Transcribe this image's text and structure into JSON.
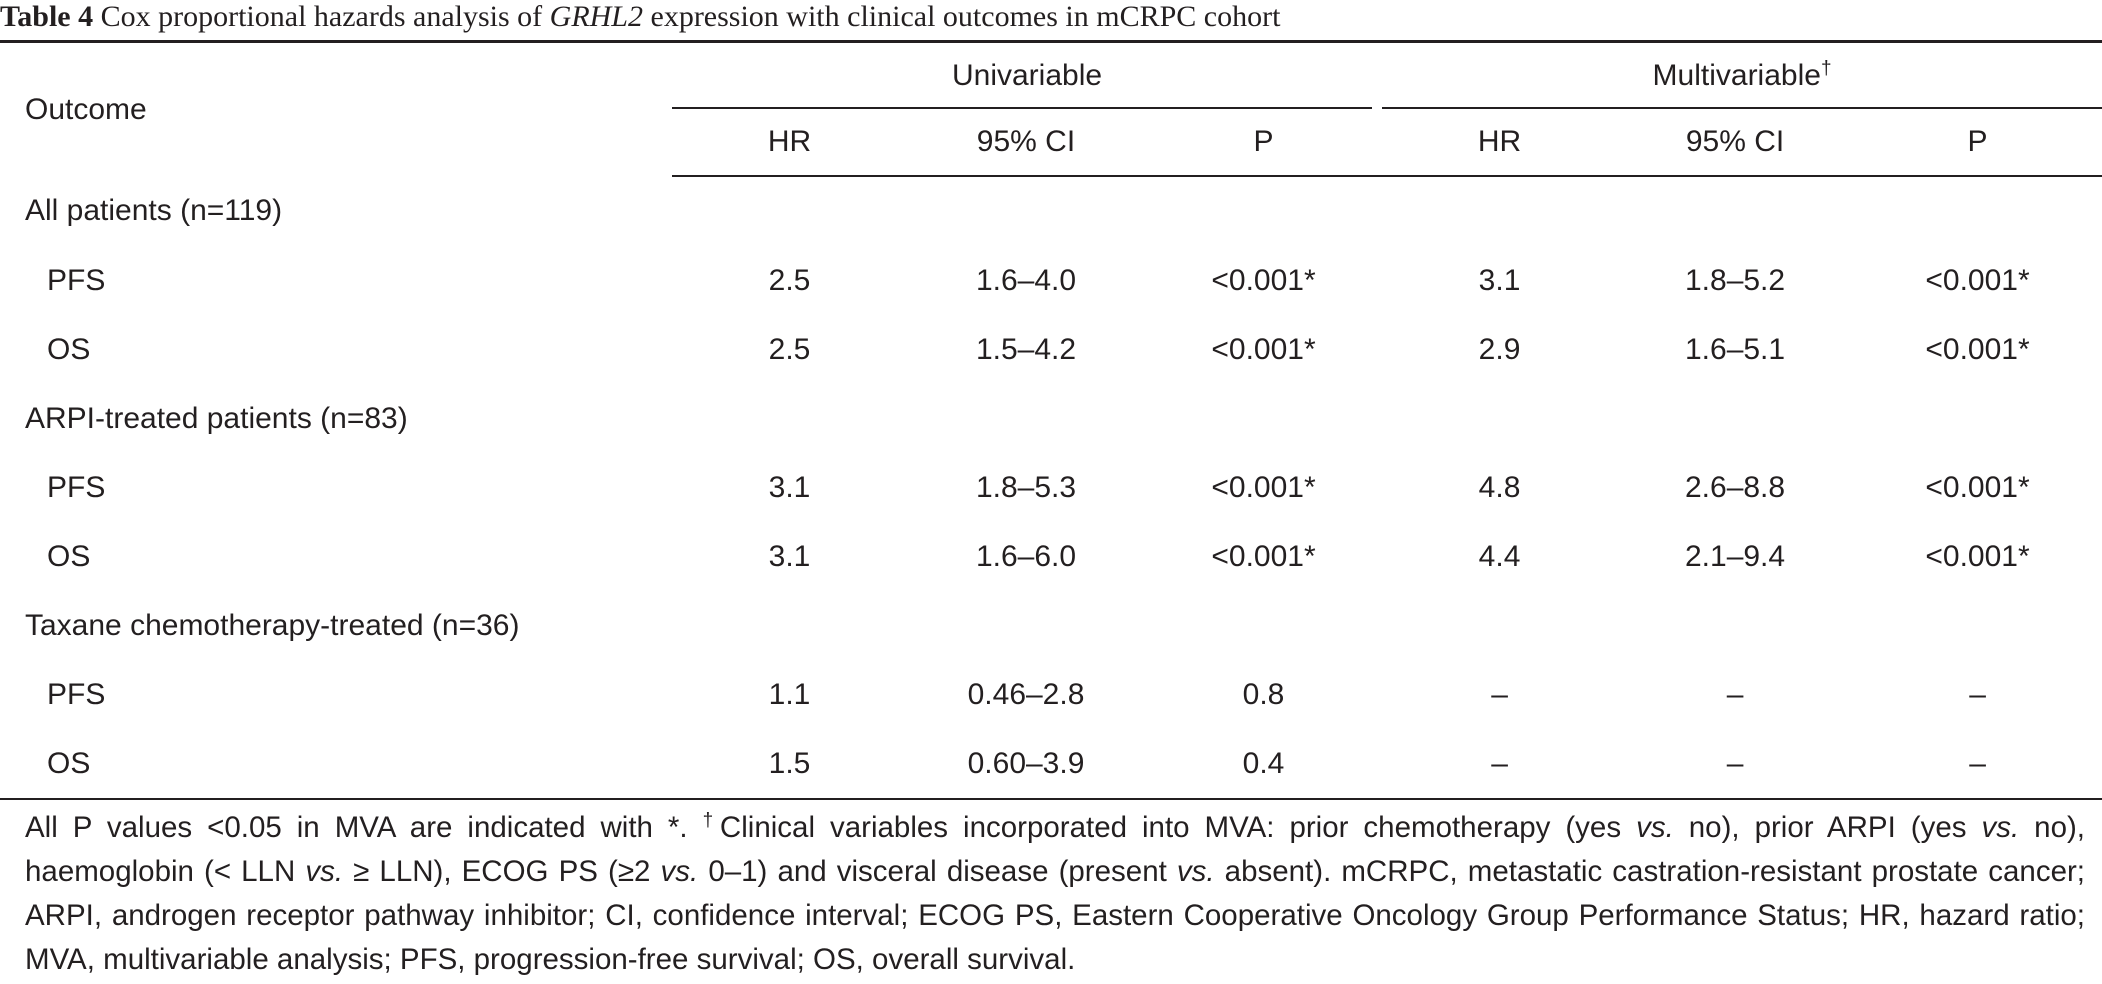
{
  "caption": {
    "label": "Table 4",
    "text_before": " Cox proportional hazards analysis of ",
    "gene": "GRHL2",
    "text_after": " expression with clinical outcomes in mCRPC cohort"
  },
  "table": {
    "outcome_header": "Outcome",
    "group_headers": {
      "univariable": "Univariable",
      "multivariable": "Multivariable",
      "multivariable_mark": "†"
    },
    "sub_headers": [
      "HR",
      "95% CI",
      "P",
      "HR",
      "95% CI",
      "P"
    ],
    "groups": [
      {
        "label": "All patients (n=119)",
        "rows": [
          {
            "outcome": "PFS",
            "cells": [
              "2.5",
              "1.6–4.0",
              "<0.001*",
              "3.1",
              "1.8–5.2",
              "<0.001*"
            ]
          },
          {
            "outcome": "OS",
            "cells": [
              "2.5",
              "1.5–4.2",
              "<0.001*",
              "2.9",
              "1.6–5.1",
              "<0.001*"
            ]
          }
        ]
      },
      {
        "label": "ARPI-treated patients (n=83)",
        "rows": [
          {
            "outcome": "PFS",
            "cells": [
              "3.1",
              "1.8–5.3",
              "<0.001*",
              "4.8",
              "2.6–8.8",
              "<0.001*"
            ]
          },
          {
            "outcome": "OS",
            "cells": [
              "3.1",
              "1.6–6.0",
              "<0.001*",
              "4.4",
              "2.1–9.4",
              "<0.001*"
            ]
          }
        ]
      },
      {
        "label": "Taxane chemotherapy-treated (n=36)",
        "rows": [
          {
            "outcome": "PFS",
            "cells": [
              "1.1",
              "0.46–2.8",
              "0.8",
              "–",
              "–",
              "–"
            ]
          },
          {
            "outcome": "OS",
            "cells": [
              "1.5",
              "0.60–3.9",
              "0.4",
              "–",
              "–",
              "–"
            ]
          }
        ]
      }
    ]
  },
  "footnote": {
    "p1": "All P values <0.05 in MVA are indicated with *. ",
    "dag": "†",
    "p2": "Clinical variables incorporated into MVA: prior chemotherapy (yes ",
    "vs1": "vs.",
    "p3": " no), prior ARPI (yes ",
    "vs2": "vs.",
    "p4": " no), haemoglobin (< LLN ",
    "vs3": "vs.",
    "p5": " ≥ LLN), ECOG PS (≥2 ",
    "vs4": "vs.",
    "p6": " 0–1) and visceral disease (present ",
    "vs5": "vs.",
    "p7": " absent). mCRPC, metastatic castration-resistant prostate cancer; ARPI, androgen receptor pathway inhibitor; CI, confidence interval; ECOG PS, Eastern Cooperative Oncology Group Performance Status; HR, hazard ratio; MVA, multivariable analysis; PFS, progression-free survival; OS, overall survival."
  }
}
